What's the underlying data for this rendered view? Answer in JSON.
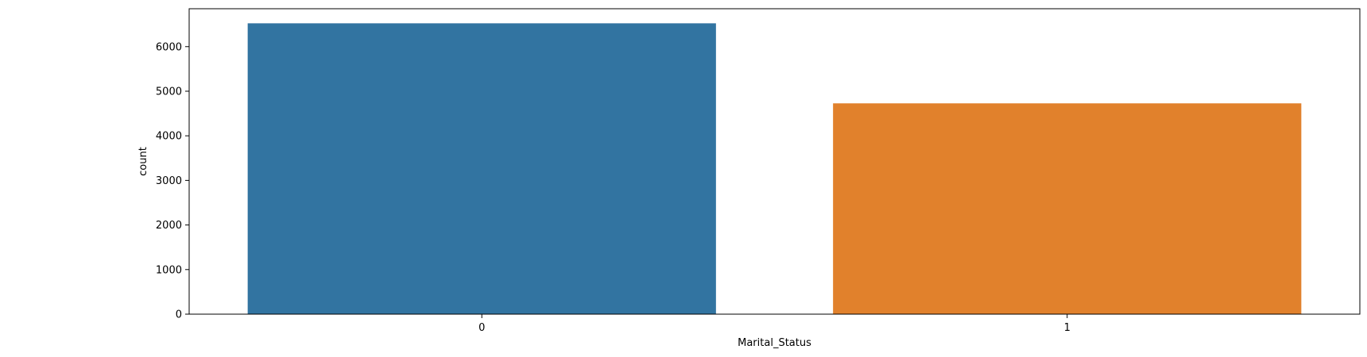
{
  "chart_data": {
    "type": "bar",
    "categories": [
      "0",
      "1"
    ],
    "values": [
      6523,
      4728
    ],
    "colors": [
      "#3274a1",
      "#e1812c"
    ],
    "xlabel": "Marital_Status",
    "ylabel": "count",
    "ylim": [
      0,
      6850
    ],
    "yticks": [
      0,
      1000,
      2000,
      3000,
      4000,
      5000,
      6000
    ],
    "grid": false,
    "legend": "none"
  }
}
